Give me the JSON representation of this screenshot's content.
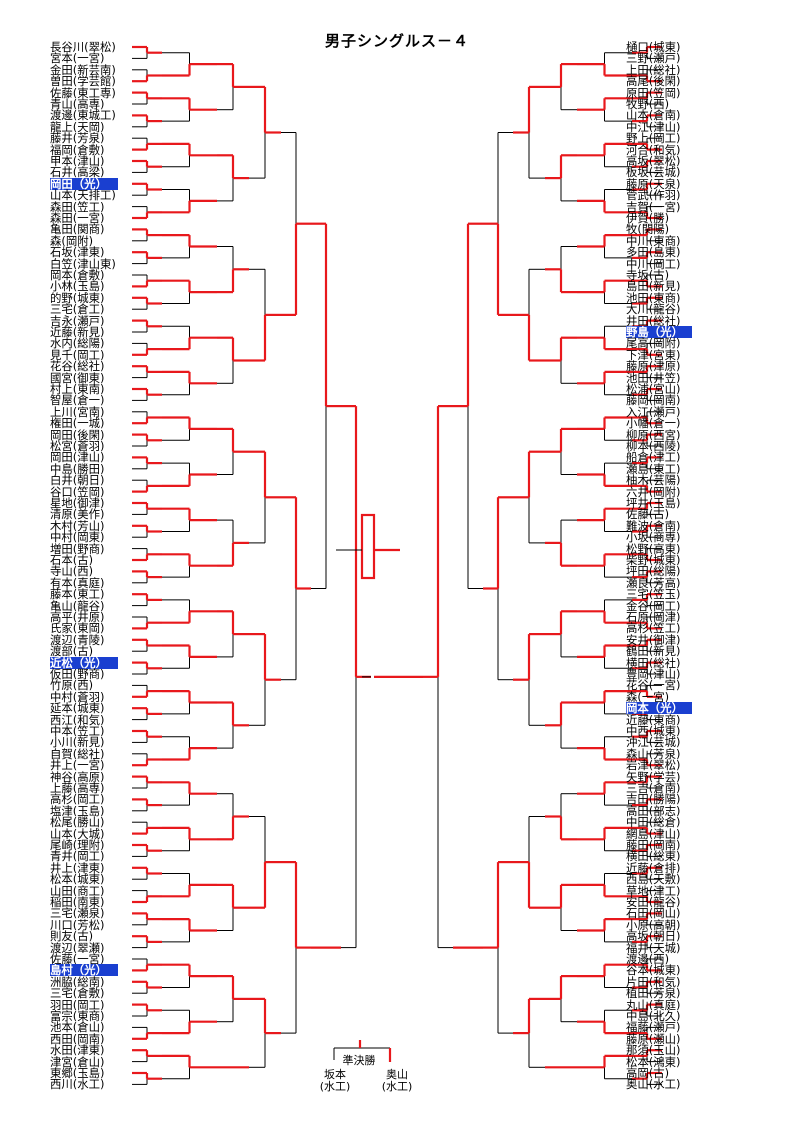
{
  "title": "男子シングルス－４",
  "left_players": [
    "長谷川(翠松)",
    "宮本(一宮)",
    "金田(新芸南)",
    "曽田(学芸館)",
    "佐藤(東工専)",
    "青山(高専)",
    "渡邊(東城工)",
    "龍上(天岡)",
    "藤井(芳泉)",
    "福岡(倉敷)",
    "甲本(津山)",
    "石井(高梁)",
    "岡田（光）",
    "山本(天排工)",
    "森田(笠工)",
    "森田(一宮)",
    "亀田(関商)",
    "森(岡附)",
    "石坂(津東)",
    "白笠(津山東)",
    "岡本(倉敷)",
    "小林(玉島)",
    "的野(城東)",
    "三宅(倉工)",
    "吉永(瀬戸)",
    "近藤(新見)",
    "水内(総陽)",
    "見千(岡工)",
    "花谷(総社)",
    "國宮(御東)",
    "村上(東南)",
    "智屋(倉一)",
    "上川(宮南)",
    "権田(一城)",
    "岡田(後閑)",
    "松宮(蒼羽)",
    "岡田(津山)",
    "中島(勝田)",
    "白井(朝日)",
    "谷口(笠岡)",
    "星地(御津)",
    "清原(美作)",
    "木村(芳山)",
    "中村(岡東)",
    "増田(野商)",
    "石本(古)",
    "寺山(西)",
    "有本(真庭)",
    "藤本(東工)",
    "亀山(龍谷)",
    "高平(井原)",
    "氏家(東岡)",
    "渡辺(青陵)",
    "渡部(古)",
    "近松（光）",
    "仮田(野商)",
    "竹原(西)",
    "中村(蒼羽)",
    "延本(城東)",
    "西江(和気)",
    "中本(笠工)",
    "小川(新見)",
    "自賀(総社)",
    "井上(一宮)",
    "神谷(高原)",
    "上藤(高専)",
    "高杉(岡工)",
    "塩津(玉島)",
    "松尾(勝山)",
    "山本(大城)",
    "尾崎(理附)",
    "青井(岡工)",
    "井上(津東)",
    "松本(城東)",
    "山田(商工)",
    "稲田(南東)",
    "三宅(瀬泉)",
    "川口(芳松)",
    "則友(古)",
    "渡辺(翠瀬)",
    "佐藤(一宮)",
    "島村（光）",
    "洲脇(総南)",
    "三宅(倉敷)",
    "羽田(岡工)",
    "富宗(東商)",
    "池本(倉山)",
    "西田(岡南)",
    "水田(津東)",
    "津宮(倉山)",
    "東郷(玉島)",
    "西川(水工)"
  ],
  "right_players": [
    "樋口(城東)",
    "三野(瀬戸)",
    "上田(総社)",
    "高尾(後閑)",
    "原田(笠岡)",
    "牧野(西)",
    "山本(倉南)",
    "中江(津山)",
    "野上(岡工)",
    "河合(和気)",
    "高坂(翠松)",
    "板坂(芸城)",
    "藤原(天泉)",
    "菅武(作羽)",
    "吉賀(一宮)",
    "伊賀(勝)",
    "牧(関陽)",
    "中川(東商)",
    "多田(島東)",
    "中川(岡工)",
    "寺坂(古)",
    "島田(新見)",
    "池田(東商)",
    "大川(龍谷)",
    "井田(総社)",
    "野島（光）",
    "尾高(岡附)",
    "下津(宮東)",
    "藤原(津原)",
    "池田(井笠)",
    "松浦(宮山)",
    "藤岡(岡南)",
    "入江(瀬戸)",
    "小幡(倉一)",
    "柳原(西宮)",
    "柳本(西陵)",
    "船倉(津工)",
    "瀬島(東工)",
    "柚木(芸陽)",
    "六井(岡附)",
    "坪井(玉島)",
    "佐藤(古)",
    "難波(倉南)",
    "小坂(商専)",
    "松野(高東)",
    "柴野(城東)",
    "坪田(総陽)",
    "瀬良(芳高)",
    "三宅(笠玉)",
    "金谷(岡工)",
    "石原(岡津)",
    "高杉(笠工)",
    "安井(御津)",
    "鶴田(新見)",
    "横田(総社)",
    "豊岡(津山)",
    "花谷(一宮)",
    "森(一宮)",
    "岡本（光）",
    "近藤(東商)",
    "中西(城東)",
    "沖江(芸城)",
    "森山(芳泉)",
    "岩津(翠松)",
    "矢野(学芸)",
    "三吉(倉南)",
    "吉田(勝陽)",
    "高田(部志)",
    "中田(総倉)",
    "網島(津山)",
    "藤田(岡南)",
    "横田(総東)",
    "近藤(倉排)",
    "西島(天敷)",
    "草地(津工)",
    "安田(龍谷)",
    "石田(岡山)",
    "小原(高朝)",
    "高坂(朝日)",
    "福井(天城)",
    "渡邊(西)",
    "谷本(城東)",
    "片田(和気)",
    "植田(芳泉)",
    "丸山(真庭)",
    "中島(北久)",
    "福藤(瀬戸)",
    "藤原(瀬山)",
    "那須(玉山)",
    "松本(鴻東)",
    "高岡(古)",
    "奥山(水工)"
  ],
  "final": {
    "label": "準決勝",
    "left_name": "坂本",
    "left_school": "(水工)",
    "right_name": "奥山",
    "right_school": "(水工)"
  },
  "colors": {
    "win": "#e8181c",
    "lose": "#000000",
    "highlight": "#1a3fd0"
  },
  "left_highlight_index": [
    12,
    54,
    81
  ],
  "right_highlight_index": [
    25,
    58
  ],
  "left_winner": "坂本(水工)",
  "right_winner": "奥山(水工)"
}
